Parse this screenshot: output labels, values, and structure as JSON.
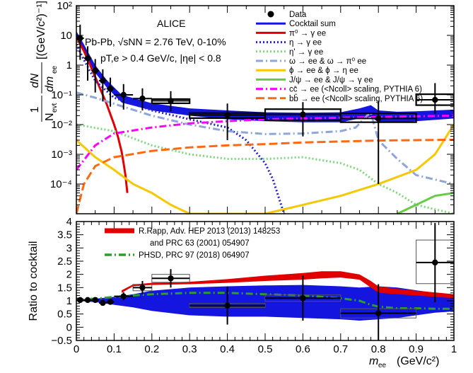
{
  "chart_data": [
    {
      "type": "line",
      "panel": "top",
      "ylog": true,
      "xlim": [
        0,
        1
      ],
      "ylim_exp": [
        -5,
        2
      ],
      "ytick_labels": [
        "10⁻⁴",
        "10⁻³",
        "10⁻²",
        "10⁻¹",
        "1",
        "10",
        "10²"
      ],
      "ylabel_main": "dN",
      "ylabel_norm": "1",
      "ylabel_den": "N",
      "ylabel_den_sub": "evt",
      "ylabel_dm": "dm",
      "ylabel_dm_sub": "ee",
      "ylabel_unit": "[(GeV/c²)⁻¹]",
      "annotations": {
        "experiment": "ALICE",
        "system": "Pb-Pb, √sNN = 2.76 TeV, 0-10%",
        "cuts": "pT,e > 0.4 GeV/c, |ηe| < 0.8"
      },
      "legend": [
        {
          "name": "Data",
          "style": "marker",
          "color": "#000000"
        },
        {
          "name": "Cocktail sum",
          "style": "solid",
          "color": "#1515e0"
        },
        {
          "name": "π⁰ → γ ee",
          "style": "solid",
          "color": "#e00000"
        },
        {
          "name": "η → γ ee",
          "style": "dotted",
          "color": "#2020d0"
        },
        {
          "name": "η' → γ ee",
          "style": "dotted",
          "color": "#7cd67c"
        },
        {
          "name": "ω → ee  &  ω → π⁰ ee",
          "style": "dashdot",
          "color": "#8ea6d8"
        },
        {
          "name": "ϕ → ee  &  ϕ → η ee",
          "style": "solid",
          "color": "#f5c800"
        },
        {
          "name": "J/ψ → ee  &  J/ψ → γ ee",
          "style": "solid",
          "color": "#66cc44"
        },
        {
          "name": "cc̄ → ee (<Ncoll> scaling, PYTHIA 6)",
          "style": "dashdot",
          "color": "#ff00ff"
        },
        {
          "name": "bb̄ → ee (<Ncoll> scaling, PYTHIA 6)",
          "style": "dashed",
          "color": "#ff6a10"
        }
      ],
      "data_points": {
        "x": [
          0.01,
          0.03,
          0.05,
          0.07,
          0.09,
          0.125,
          0.175,
          0.25,
          0.4,
          0.6,
          0.8,
          0.95
        ],
        "y": [
          8.0,
          1.7,
          0.65,
          0.3,
          0.16,
          0.1,
          0.075,
          0.063,
          0.021,
          0.022,
          0.016,
          0.068
        ],
        "y_err_low": [
          6.5,
          1.4,
          0.53,
          0.24,
          0.12,
          0.068,
          0.045,
          0.035,
          0.018,
          0.018,
          0.0159,
          0.045
        ],
        "y_err_high": [
          15,
          2.6,
          0.95,
          0.42,
          0.22,
          0.13,
          0.09,
          0.07,
          0.03,
          0.035,
          0.045,
          0.18
        ],
        "x_halfwidth": [
          0.01,
          0.01,
          0.01,
          0.01,
          0.01,
          0.025,
          0.025,
          0.05,
          0.1,
          0.1,
          0.1,
          0.05
        ]
      },
      "syst_boxes": [
        {
          "x": 0.25,
          "y_lo": 0.052,
          "y_hi": 0.072,
          "half": 0.05
        },
        {
          "x": 0.4,
          "y_lo": 0.0165,
          "y_hi": 0.0245,
          "half": 0.1
        },
        {
          "x": 0.6,
          "y_lo": 0.014,
          "y_hi": 0.033,
          "half": 0.1
        },
        {
          "x": 0.8,
          "y_lo": 0.012,
          "y_hi": 0.024,
          "half": 0.1
        },
        {
          "x": 0.95,
          "y_lo": 0.045,
          "y_hi": 0.105,
          "half": 0.05
        }
      ],
      "series": [
        {
          "key": "cocktail_band",
          "type": "band",
          "color": "#1515e0",
          "x": [
            0,
            0.02,
            0.05,
            0.08,
            0.12,
            0.2,
            0.3,
            0.4,
            0.5,
            0.6,
            0.7,
            0.75,
            0.78,
            0.8,
            0.85,
            0.9,
            1.0
          ],
          "y_low": [
            8.0,
            2.8,
            0.55,
            0.18,
            0.055,
            0.03,
            0.02,
            0.015,
            0.013,
            0.012,
            0.012,
            0.016,
            0.018,
            0.012,
            0.012,
            0.013,
            0.016
          ],
          "y_high": [
            14.0,
            5.0,
            1.0,
            0.32,
            0.1,
            0.052,
            0.035,
            0.03,
            0.026,
            0.025,
            0.026,
            0.035,
            0.045,
            0.03,
            0.027,
            0.028,
            0.032
          ]
        },
        {
          "key": "pi0",
          "color": "#e00000",
          "style": "solid",
          "x": [
            0,
            0.02,
            0.04,
            0.06,
            0.08,
            0.1,
            0.11,
            0.12,
            0.125,
            0.13,
            0.135
          ],
          "y": [
            9.0,
            3.0,
            0.8,
            0.2,
            0.05,
            0.01,
            0.004,
            0.0012,
            0.0005,
            0.0002,
            5e-05
          ]
        },
        {
          "key": "eta",
          "color": "#2020d0",
          "style": "dotted",
          "x": [
            0,
            0.02,
            0.05,
            0.1,
            0.2,
            0.3,
            0.4,
            0.45,
            0.5,
            0.52,
            0.55
          ],
          "y": [
            5.0,
            1.5,
            0.3,
            0.08,
            0.03,
            0.015,
            0.008,
            0.003,
            0.0005,
            0.00015,
            1e-05
          ]
        },
        {
          "key": "etaprime",
          "color": "#7cd67c",
          "style": "dotted",
          "x": [
            0.0,
            0.1,
            0.2,
            0.3,
            0.4,
            0.5,
            0.6,
            0.7,
            0.75,
            0.8,
            0.85,
            0.9,
            1.0
          ],
          "y": [
            0.01,
            0.006,
            0.002,
            0.001,
            0.0007,
            0.0007,
            0.0008,
            0.0005,
            0.0003,
            0.0001,
            5e-05,
            2e-05,
            1e-05
          ]
        },
        {
          "key": "omega",
          "color": "#8ea6d8",
          "style": "dashdot",
          "x": [
            0.0,
            0.05,
            0.1,
            0.2,
            0.3,
            0.4,
            0.5,
            0.6,
            0.65,
            0.7,
            0.74,
            0.77,
            0.78,
            0.8,
            0.85,
            0.9,
            1.0
          ],
          "y": [
            0.12,
            0.08,
            0.05,
            0.02,
            0.01,
            0.006,
            0.0048,
            0.005,
            0.0055,
            0.006,
            0.008,
            0.02,
            0.025,
            0.003,
            0.0007,
            0.0002,
            0.0001
          ]
        },
        {
          "key": "phi",
          "color": "#f5c800",
          "style": "solid",
          "x": [
            0.0,
            0.05,
            0.1,
            0.15,
            0.2,
            0.25,
            0.3,
            0.4,
            0.5,
            0.6,
            0.7,
            0.8,
            0.9,
            0.95,
            1.0
          ],
          "y": [
            0.003,
            0.0008,
            0.0003,
            0.0001,
            5e-05,
            2e-05,
            1e-05,
            1e-05,
            1e-05,
            2e-05,
            4e-05,
            0.0001,
            0.0003,
            0.001,
            0.01
          ]
        },
        {
          "key": "jpsi",
          "color": "#66cc44",
          "style": "solid",
          "x": [
            0.85,
            0.9,
            0.95,
            1.0
          ],
          "y": [
            1e-05,
            2e-05,
            4e-05,
            5e-05
          ]
        },
        {
          "key": "ccbar",
          "color": "#ff00ff",
          "style": "dashdot",
          "x": [
            0.0,
            0.05,
            0.1,
            0.2,
            0.3,
            0.4,
            0.5,
            0.6,
            0.7,
            0.8,
            0.9,
            1.0
          ],
          "y": [
            0.0003,
            0.002,
            0.005,
            0.008,
            0.011,
            0.013,
            0.015,
            0.016,
            0.017,
            0.018,
            0.019,
            0.02
          ]
        },
        {
          "key": "bbbar",
          "color": "#ff6a10",
          "style": "dashed",
          "x": [
            0.0,
            0.02,
            0.05,
            0.1,
            0.2,
            0.3,
            0.4,
            0.5,
            0.6,
            0.7,
            0.8,
            0.9,
            1.0
          ],
          "y": [
            1e-05,
            0.0001,
            0.0004,
            0.0008,
            0.0013,
            0.0017,
            0.002,
            0.0022,
            0.0025,
            0.0027,
            0.0029,
            0.003,
            0.0031
          ]
        }
      ]
    },
    {
      "type": "line",
      "panel": "bottom",
      "xlim": [
        0,
        1
      ],
      "ylim": [
        -0.5,
        4
      ],
      "xticks": [
        0,
        0.1,
        0.2,
        0.3,
        0.4,
        0.5,
        0.6,
        0.7,
        0.8,
        0.9,
        1
      ],
      "xtick_labels": [
        "0",
        "0.1",
        "0.2",
        "0.3",
        "0.4",
        "0.5",
        "0.6",
        "0.7",
        "0.8",
        "0.9",
        "1"
      ],
      "yticks": [
        -0.5,
        0,
        0.5,
        1,
        1.5,
        2,
        2.5,
        3,
        3.5,
        4
      ],
      "ytick_labels": [
        "−0.5",
        "0",
        "0.5",
        "1",
        "1.5",
        "2",
        "2.5",
        "3",
        "3.5",
        "4"
      ],
      "xlabel_main": "m",
      "xlabel_sub": "ee",
      "xlabel_unit": "(GeV/c²)",
      "ylabel": "Ratio to cocktail",
      "legend": [
        {
          "name": "R.Rapp, Adv. HEP 2013 (2013) 148253",
          "color": "#e00000",
          "style": "band"
        },
        {
          "name": "and PRC 63 (2001) 054907",
          "color": "",
          "style": "none"
        },
        {
          "name": "PHSD, PRC 97 (2018) 064907",
          "color": "#2aa02a",
          "style": "dashdot"
        }
      ],
      "data_points": {
        "x": [
          0.01,
          0.03,
          0.05,
          0.07,
          0.09,
          0.125,
          0.175,
          0.25,
          0.4,
          0.6,
          0.8,
          0.95
        ],
        "y": [
          1.03,
          1.03,
          1.03,
          0.92,
          0.96,
          1.17,
          1.5,
          1.85,
          0.82,
          1.1,
          0.53,
          2.45
        ],
        "y_err": [
          0.05,
          0.05,
          0.05,
          0.05,
          0.07,
          0.15,
          0.25,
          0.35,
          0.72,
          0.85,
          1.1,
          1.5
        ],
        "x_halfwidth": [
          0.01,
          0.01,
          0.01,
          0.01,
          0.01,
          0.025,
          0.025,
          0.05,
          0.1,
          0.1,
          0.1,
          0.05
        ]
      },
      "syst_boxes": [
        {
          "x": 0.175,
          "y_lo": 1.38,
          "y_hi": 1.62,
          "half": 0.025
        },
        {
          "x": 0.25,
          "y_lo": 1.7,
          "y_hi": 2.0,
          "half": 0.05
        },
        {
          "x": 0.4,
          "y_lo": 0.75,
          "y_hi": 0.9,
          "half": 0.1
        },
        {
          "x": 0.6,
          "y_lo": 0.98,
          "y_hi": 1.22,
          "half": 0.1
        },
        {
          "x": 0.8,
          "y_lo": 0.35,
          "y_hi": 0.7,
          "half": 0.1
        },
        {
          "x": 0.95,
          "y_lo": 1.65,
          "y_hi": 3.3,
          "half": 0.05
        }
      ],
      "series": [
        {
          "key": "cocktail_unc",
          "type": "band",
          "color": "#1515e0",
          "x": [
            0,
            0.05,
            0.1,
            0.15,
            0.2,
            0.3,
            0.4,
            0.5,
            0.6,
            0.7,
            0.75,
            0.8,
            0.85,
            0.9,
            0.95,
            1.0
          ],
          "y_low": [
            1.0,
            0.95,
            0.85,
            0.75,
            0.62,
            0.45,
            0.4,
            0.4,
            0.35,
            0.3,
            0.25,
            0.3,
            0.35,
            0.45,
            0.55,
            0.6
          ],
          "y_high": [
            1.05,
            1.08,
            1.15,
            1.25,
            1.38,
            1.5,
            1.55,
            1.58,
            1.6,
            1.55,
            1.5,
            1.55,
            1.5,
            1.4,
            1.3,
            1.25
          ]
        },
        {
          "key": "rapp",
          "type": "band",
          "color": "#e00000",
          "x": [
            0.12,
            0.15,
            0.2,
            0.3,
            0.4,
            0.5,
            0.6,
            0.65,
            0.7,
            0.75,
            0.78,
            0.8,
            0.85,
            0.9,
            0.95,
            1.0
          ],
          "y_low": [
            1.3,
            1.55,
            1.6,
            1.63,
            1.68,
            1.75,
            1.8,
            1.85,
            1.88,
            1.8,
            1.5,
            1.3,
            1.25,
            1.2,
            1.15,
            1.1
          ],
          "y_high": [
            1.4,
            1.62,
            1.68,
            1.72,
            1.82,
            1.95,
            2.05,
            2.12,
            2.12,
            2.0,
            1.75,
            1.55,
            1.45,
            1.38,
            1.32,
            1.25
          ]
        },
        {
          "key": "phsd",
          "color": "#2aa02a",
          "style": "dashdot",
          "x": [
            0.0,
            0.05,
            0.1,
            0.15,
            0.2,
            0.3,
            0.4,
            0.5,
            0.6,
            0.7,
            0.75,
            0.78,
            0.8,
            0.85,
            0.9,
            0.95,
            1.0
          ],
          "y": [
            1.05,
            1.08,
            1.15,
            1.2,
            1.25,
            1.3,
            1.3,
            1.25,
            1.2,
            1.1,
            1.0,
            0.85,
            0.78,
            0.72,
            0.72,
            0.7,
            0.7
          ]
        }
      ]
    }
  ]
}
